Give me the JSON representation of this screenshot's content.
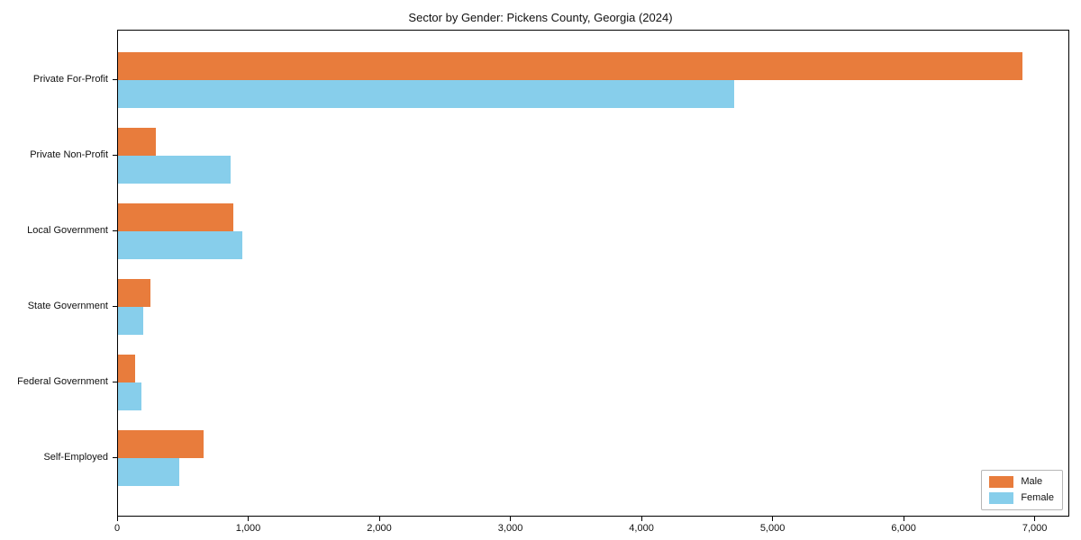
{
  "title": "Sector by Gender: Pickens County, Georgia (2024)",
  "chart_data": {
    "type": "bar",
    "orientation": "horizontal",
    "title": "Sector by Gender: Pickens County, Georgia (2024)",
    "xlabel": "",
    "ylabel": "",
    "categories": [
      "Private For-Profit",
      "Private Non-Profit",
      "Local Government",
      "State Government",
      "Federal Government",
      "Self-Employed"
    ],
    "series": [
      {
        "name": "Male",
        "color": "#E87C3C",
        "values": [
          6900,
          285,
          880,
          250,
          130,
          650
        ]
      },
      {
        "name": "Female",
        "color": "#87CEEB",
        "values": [
          4700,
          860,
          950,
          190,
          180,
          465
        ]
      }
    ],
    "xlim": [
      0,
      7250
    ],
    "xticks": [
      {
        "value": 0,
        "label": "0"
      },
      {
        "value": 1000,
        "label": "1,000"
      },
      {
        "value": 2000,
        "label": "2,000"
      },
      {
        "value": 3000,
        "label": "3,000"
      },
      {
        "value": 4000,
        "label": "4,000"
      },
      {
        "value": 5000,
        "label": "5,000"
      },
      {
        "value": 6000,
        "label": "6,000"
      },
      {
        "value": 7000,
        "label": "7,000"
      }
    ],
    "grid": false,
    "legend": {
      "position": "lower right"
    }
  }
}
